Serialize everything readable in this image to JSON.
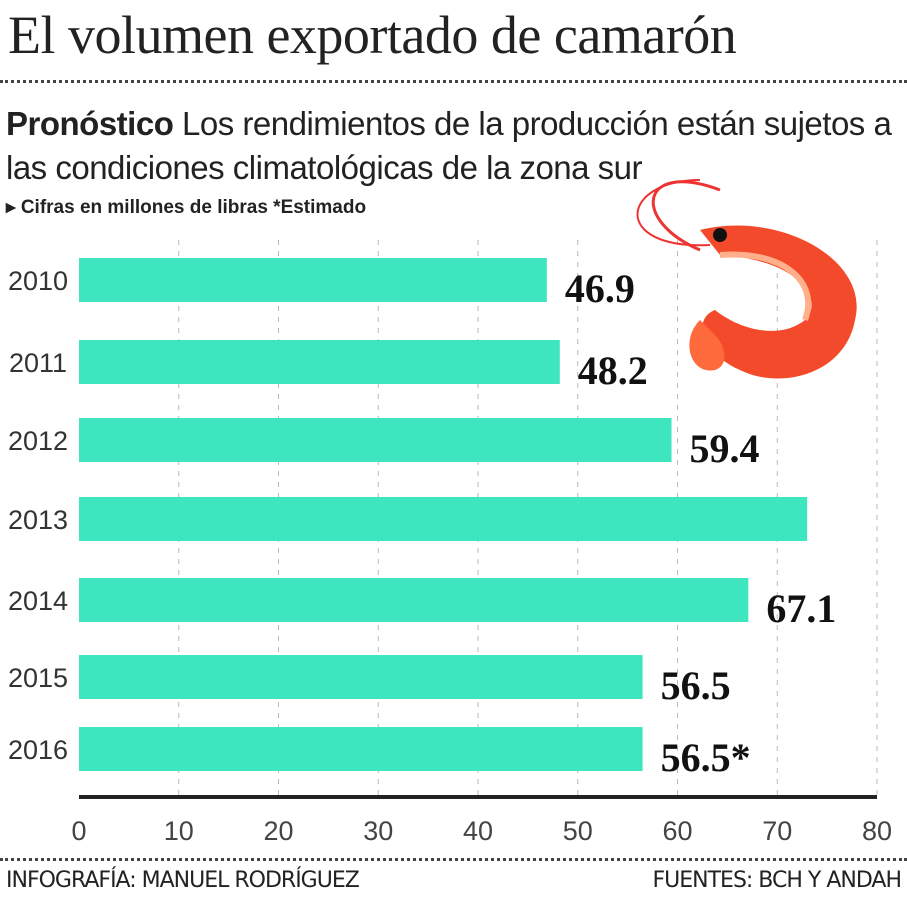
{
  "title": "El volumen exportado de camarón",
  "subtitle_bold": "Pronóstico",
  "subtitle": "Los rendimientos de la producción están sujetos a las condiciones climatológicas de la zona sur",
  "note": "▸ Cifras en millones de libras *Estimado",
  "footer_left": "INFOGRAFÍA: MANUEL RODRÍGUEZ",
  "footer_right": "FUENTES: BCH Y ANDAH",
  "bar_color": "#3ee6c0",
  "chart_data": {
    "type": "bar",
    "orientation": "horizontal",
    "categories": [
      "2010",
      "2011",
      "2012",
      "2013",
      "2014",
      "2015",
      "2016"
    ],
    "values": [
      46.9,
      48.2,
      59.4,
      73,
      67.1,
      56.5,
      56.5
    ],
    "data_labels": [
      "46.9",
      "48.2",
      "59.4",
      "",
      "67.1",
      "56.5",
      "56.5*"
    ],
    "xlim": [
      0,
      80
    ],
    "xticks": [
      "0",
      "10",
      "20",
      "30",
      "40",
      "50",
      "60",
      "70",
      "80"
    ],
    "grid": "vertical dashed",
    "xlabel": "",
    "ylabel": ""
  }
}
